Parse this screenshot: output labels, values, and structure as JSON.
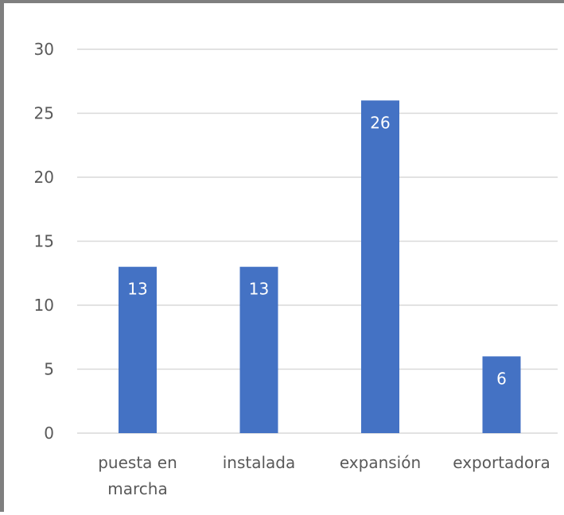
{
  "chart_data": {
    "type": "bar",
    "categories": [
      "puesta en marcha",
      "instalada",
      "expansión",
      "exportadora"
    ],
    "category_lines": [
      [
        "puesta en",
        "marcha"
      ],
      [
        "instalada"
      ],
      [
        "expansión"
      ],
      [
        "exportadora"
      ]
    ],
    "values": [
      13,
      13,
      26,
      6
    ],
    "data_labels": [
      "13",
      "13",
      "26",
      "6"
    ],
    "ylim": [
      0,
      30
    ],
    "yticks": [
      0,
      5,
      10,
      15,
      20,
      25,
      30
    ],
    "grid": true,
    "legend": "none",
    "colors": {
      "bar": "#4472c4",
      "grid": "#d9d9d9",
      "text": "#595959",
      "data_label": "#ffffff",
      "frame": "#7f7f7f"
    }
  }
}
